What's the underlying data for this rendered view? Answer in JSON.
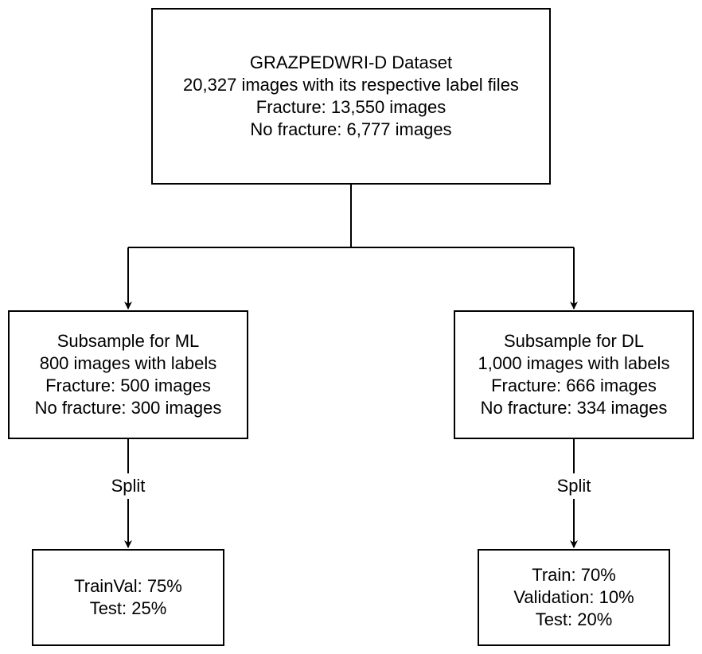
{
  "root": {
    "lines": [
      "GRAZPEDWRI-D Dataset",
      "20,327 images with its respective label files",
      "Fracture: 13,550 images",
      "No fracture: 6,777 images"
    ]
  },
  "ml_subsample": {
    "lines": [
      "Subsample for ML",
      "800 images with labels",
      "Fracture: 500 images",
      "No fracture: 300 images"
    ]
  },
  "dl_subsample": {
    "lines": [
      "Subsample for DL",
      "1,000 images with labels",
      "Fracture: 666 images",
      "No fracture: 334 images"
    ]
  },
  "ml_split": {
    "label": "Split",
    "lines": [
      "TrainVal: 75%",
      "Test: 25%"
    ]
  },
  "dl_split": {
    "label": "Split",
    "lines": [
      "Train: 70%",
      "Validation: 10%",
      "Test: 20%"
    ]
  }
}
